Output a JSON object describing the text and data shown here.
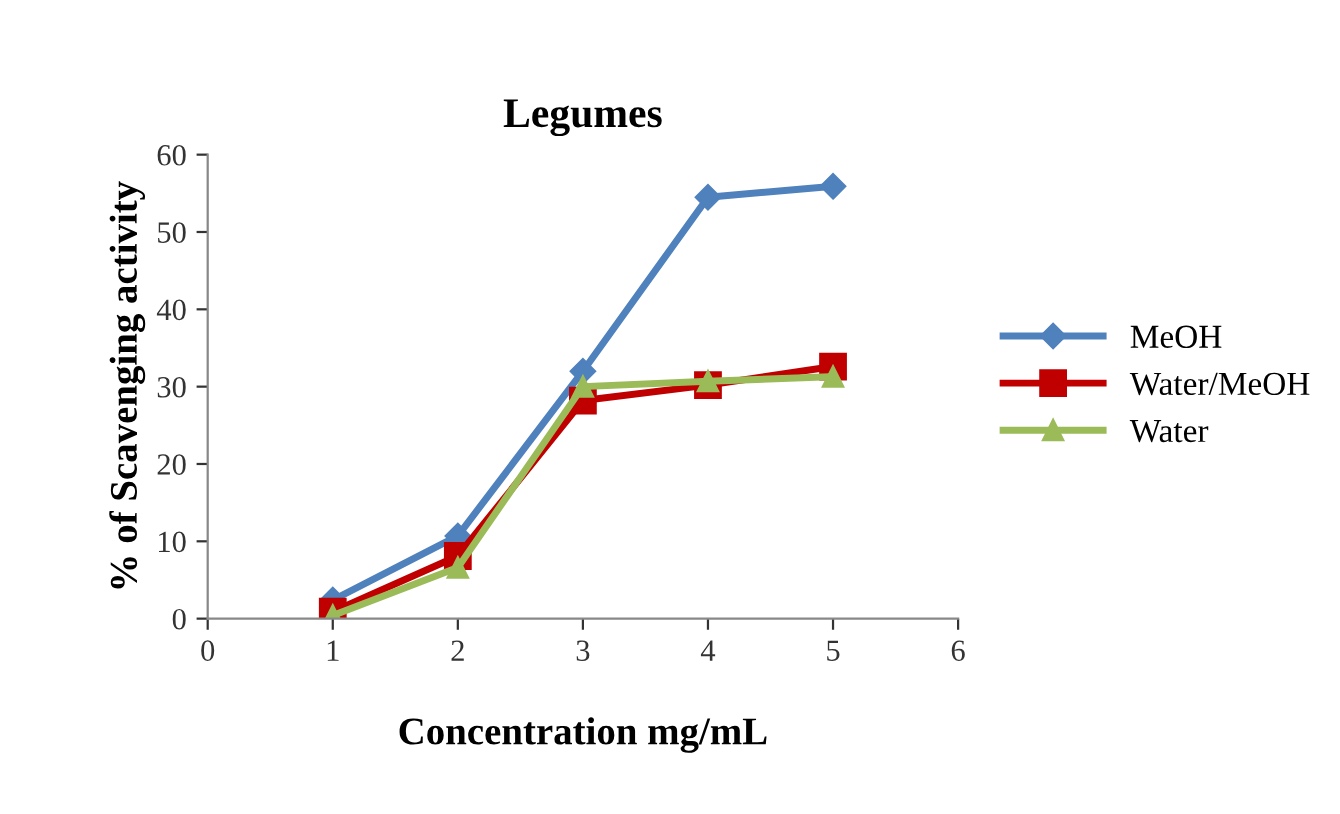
{
  "chart_data": {
    "type": "line",
    "title": "Legumes",
    "xlabel": "Concentration mg/mL",
    "ylabel": "% of Scavenging activity",
    "x": [
      1,
      2,
      3,
      4,
      5
    ],
    "series": [
      {
        "name": "MeOH",
        "color": "#4f81bd",
        "marker": "diamond",
        "values": [
          2.4,
          10.7,
          32.0,
          54.5,
          55.9
        ]
      },
      {
        "name": "Water/MeOH",
        "color": "#c00000",
        "marker": "square",
        "values": [
          0.9,
          8.1,
          28.2,
          30.2,
          32.6
        ]
      },
      {
        "name": "Water",
        "color": "#9bbb59",
        "marker": "triangle",
        "values": [
          0.4,
          6.6,
          30.0,
          30.7,
          31.3
        ]
      }
    ],
    "xlim": [
      0,
      6
    ],
    "xticks": [
      0,
      1,
      2,
      3,
      4,
      5,
      6
    ],
    "ylim": [
      0,
      60
    ],
    "yticks": [
      0,
      10,
      20,
      30,
      40,
      50,
      60
    ],
    "grid": false,
    "legend": "right",
    "line_style": "solid"
  }
}
